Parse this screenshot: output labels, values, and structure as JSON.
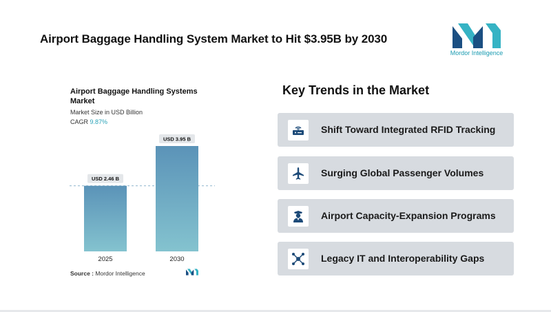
{
  "headline": "Airport Baggage Handling System Market to Hit $3.95B by 2030",
  "logo": {
    "text": "Mordor Intelligence",
    "icon": "mordor-intelligence-logo",
    "color": "#1a9bb1"
  },
  "chart": {
    "title": "Airport Baggage Handling Systems Market",
    "subtitle": "Market Size in USD Billion",
    "cagr_label": "CAGR",
    "cagr_value": "9.87%",
    "source_label": "Source :",
    "source_value": "Mordor Intelligence"
  },
  "chart_data": {
    "type": "bar",
    "title": "Airport Baggage Handling Systems Market",
    "ylabel": "Market Size in USD Billion",
    "categories": [
      "2025",
      "2030"
    ],
    "values": [
      2.46,
      3.95
    ],
    "data_labels": [
      "USD 2.46 B",
      "USD 3.95 B"
    ],
    "ylim": [
      0,
      3.95
    ],
    "grid": false,
    "reference_line_at": 2.46,
    "bar_gradient": [
      "#5b93b8",
      "#84c3cf"
    ]
  },
  "trends": {
    "title": "Key Trends in the Market",
    "items": [
      {
        "label": "Shift Toward Integrated RFID Tracking",
        "icon": "rfid-reader-icon"
      },
      {
        "label": "Surging Global Passenger Volumes",
        "icon": "airplane-icon"
      },
      {
        "label": "Airport Capacity-Expansion Programs",
        "icon": "pilot-icon"
      },
      {
        "label": "Legacy IT and Interoperability Gaps",
        "icon": "network-hub-icon"
      }
    ]
  }
}
